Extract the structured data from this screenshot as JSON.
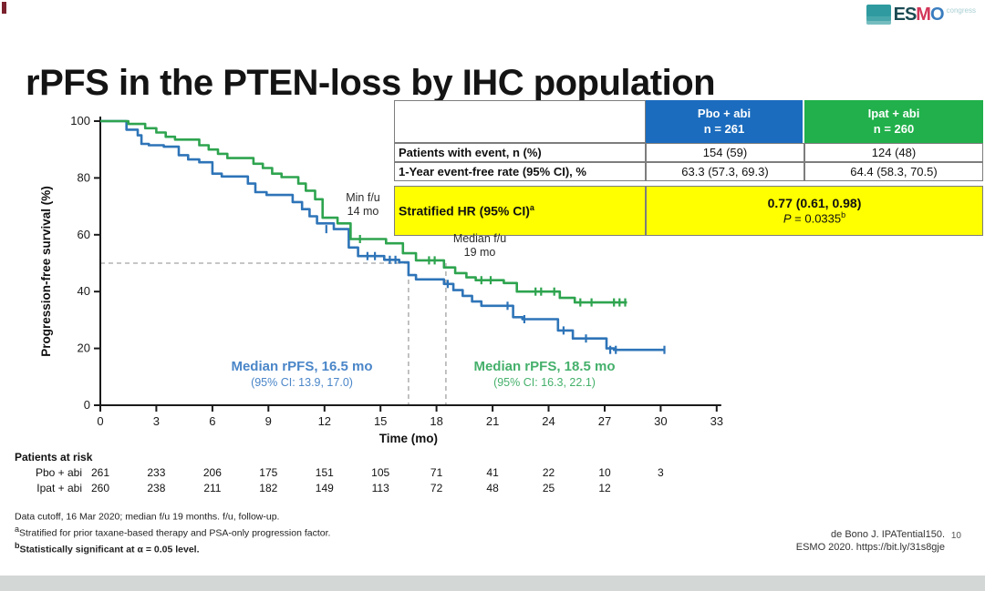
{
  "slide": {
    "title": "rPFS in the PTEN-loss by IHC population",
    "page_number": "10"
  },
  "logo": {
    "badge_color": "#2f9ba0",
    "letters": [
      {
        "ch": "E",
        "color": "#1a4a52"
      },
      {
        "ch": "S",
        "color": "#1a4a52"
      },
      {
        "ch": "M",
        "color": "#d2375a"
      },
      {
        "ch": "O",
        "color": "#3a7dbf"
      }
    ],
    "congress": "congress"
  },
  "table": {
    "header": {
      "pbo": {
        "line1": "Pbo + abi",
        "line2": "n = 261",
        "color": "#1b6cbe"
      },
      "ipat": {
        "line1": "Ipat + abi",
        "line2": "n = 260",
        "color": "#21b04b"
      }
    },
    "rows": [
      {
        "label": "Patients with event, n (%)",
        "pbo": "154 (59)",
        "ipat": "124 (48)"
      },
      {
        "label": "1-Year event-free rate (95% CI), %",
        "pbo": "63.3 (57.3, 69.3)",
        "ipat": "64.4 (58.3, 70.5)"
      }
    ],
    "hr_row": {
      "label": "Stratified HR (95% CI)",
      "label_sup": "a",
      "value": "0.77 (0.61, 0.98)",
      "p_italic": "P",
      "p_rest": " = 0.0335",
      "p_sup": "b",
      "bg": "#ffff00"
    }
  },
  "annotations": {
    "min_fu": {
      "line1": "Min f/u",
      "line2": "14 mo"
    },
    "median_fu": {
      "line1": "Median f/u",
      "line2": "19 mo"
    },
    "median_pbo": {
      "line1": "Median rPFS, 16.5 mo",
      "line2": "(95% CI: 13.9, 17.0)",
      "color": "#4a86c8"
    },
    "median_ipat": {
      "line1": "Median rPFS, 18.5 mo",
      "line2": "(95% CI: 16.3, 22.1)",
      "color": "#45b06b"
    }
  },
  "footnotes": [
    {
      "sup": "",
      "text": "Data cutoff, 16 Mar 2020; median f/u 19 months. f/u, follow-up.",
      "bold": false
    },
    {
      "sup": "a",
      "text": "Stratified for prior taxane-based therapy and PSA-only progression factor.",
      "bold": false
    },
    {
      "sup": "b",
      "text": "Statistically significant at α = 0.05 level.",
      "bold": true
    }
  ],
  "citation": {
    "line1": "de Bono J. IPATential150.",
    "line2": "ESMO 2020. https://bit.ly/31s8gje"
  },
  "chart_data": {
    "type": "line",
    "subtype": "kaplan-meier",
    "title": "rPFS in the PTEN-loss by IHC population",
    "xlabel": "Time (mo)",
    "ylabel": "Progression-free survival (%)",
    "xlim": [
      0,
      33
    ],
    "ylim": [
      0,
      100
    ],
    "x_ticks": [
      0,
      3,
      6,
      9,
      12,
      15,
      18,
      21,
      24,
      27,
      30,
      33
    ],
    "y_ticks": [
      0,
      20,
      40,
      60,
      80,
      100
    ],
    "grid": false,
    "legend_position": "none",
    "series": [
      {
        "id": "pbo",
        "name": "Pbo + abi",
        "color": "#2e74b8",
        "median_months": 16.5,
        "steps": [
          [
            0,
            100
          ],
          [
            1.4,
            97
          ],
          [
            2.0,
            95
          ],
          [
            2.2,
            92
          ],
          [
            2.6,
            91.5
          ],
          [
            3.4,
            91
          ],
          [
            4.2,
            88
          ],
          [
            4.7,
            86.5
          ],
          [
            5.3,
            85.5
          ],
          [
            6.0,
            81.5
          ],
          [
            6.5,
            80.5
          ],
          [
            7.9,
            78
          ],
          [
            8.3,
            75
          ],
          [
            8.9,
            74
          ],
          [
            10.3,
            71.5
          ],
          [
            10.8,
            69
          ],
          [
            11.2,
            66.5
          ],
          [
            11.6,
            64
          ],
          [
            12.5,
            62
          ],
          [
            13.3,
            55.5
          ],
          [
            13.8,
            52.5
          ],
          [
            15.2,
            51.2
          ],
          [
            16.0,
            50.3
          ],
          [
            16.5,
            45.8
          ],
          [
            16.9,
            44.3
          ],
          [
            18.4,
            42.7
          ],
          [
            18.9,
            40.5
          ],
          [
            19.4,
            38.5
          ],
          [
            19.9,
            36.5
          ],
          [
            20.4,
            35
          ],
          [
            22.1,
            31
          ],
          [
            22.6,
            30.3
          ],
          [
            24.5,
            26.3
          ],
          [
            25.3,
            23.5
          ],
          [
            27.1,
            20
          ],
          [
            27.5,
            19.5
          ]
        ],
        "end_t": 30.2,
        "censors": [
          [
            12.1,
            62
          ],
          [
            14.3,
            52.5
          ],
          [
            14.7,
            52.5
          ],
          [
            15.5,
            51.2
          ],
          [
            15.8,
            51.2
          ],
          [
            18.6,
            42.7
          ],
          [
            21.8,
            35
          ],
          [
            22.7,
            30.3
          ],
          [
            24.8,
            26.3
          ],
          [
            26.0,
            23.5
          ],
          [
            27.3,
            19.5
          ],
          [
            27.6,
            19.5
          ],
          [
            30.2,
            19.5
          ]
        ]
      },
      {
        "id": "ipat",
        "name": "Ipat + abi",
        "color": "#2ea44f",
        "median_months": 18.5,
        "steps": [
          [
            0,
            100
          ],
          [
            1.5,
            99
          ],
          [
            2.4,
            97.5
          ],
          [
            3.0,
            96
          ],
          [
            3.5,
            94.5
          ],
          [
            4.0,
            93.5
          ],
          [
            5.3,
            91.5
          ],
          [
            5.8,
            90
          ],
          [
            6.3,
            88.5
          ],
          [
            6.8,
            87
          ],
          [
            8.2,
            85
          ],
          [
            8.7,
            83.5
          ],
          [
            9.2,
            81.5
          ],
          [
            9.7,
            80.3
          ],
          [
            10.6,
            78
          ],
          [
            11.0,
            75.5
          ],
          [
            11.5,
            72.5
          ],
          [
            11.9,
            66
          ],
          [
            12.7,
            64
          ],
          [
            13.4,
            58.5
          ],
          [
            15.3,
            57
          ],
          [
            16.2,
            53.5
          ],
          [
            16.9,
            51
          ],
          [
            18.4,
            48.5
          ],
          [
            19.0,
            46.5
          ],
          [
            19.6,
            45
          ],
          [
            20.1,
            44
          ],
          [
            21.6,
            43
          ],
          [
            22.3,
            40
          ],
          [
            24.6,
            37.8
          ],
          [
            25.4,
            36.2
          ]
        ],
        "end_t": 28.2,
        "censors": [
          [
            13.9,
            58.5
          ],
          [
            17.6,
            51
          ],
          [
            17.9,
            51
          ],
          [
            20.4,
            44
          ],
          [
            20.9,
            44
          ],
          [
            23.3,
            40
          ],
          [
            23.6,
            40
          ],
          [
            24.3,
            40
          ],
          [
            25.7,
            36.2
          ],
          [
            26.3,
            36.2
          ],
          [
            27.5,
            36.2
          ],
          [
            27.8,
            36.2
          ],
          [
            28.1,
            36.2
          ]
        ]
      }
    ],
    "reference_lines": {
      "horizontal": {
        "s": 50,
        "t_from": 0,
        "t_to": 16.5
      },
      "vertical_t": [
        16.5,
        18.5
      ]
    },
    "risk_table": {
      "title": "Patients at risk",
      "rows": [
        {
          "label": "Pbo + abi",
          "values": [
            261,
            233,
            206,
            175,
            151,
            105,
            71,
            41,
            22,
            10,
            3
          ]
        },
        {
          "label": "Ipat + abi",
          "values": [
            260,
            238,
            211,
            182,
            149,
            113,
            72,
            48,
            25,
            12
          ]
        }
      ]
    }
  }
}
